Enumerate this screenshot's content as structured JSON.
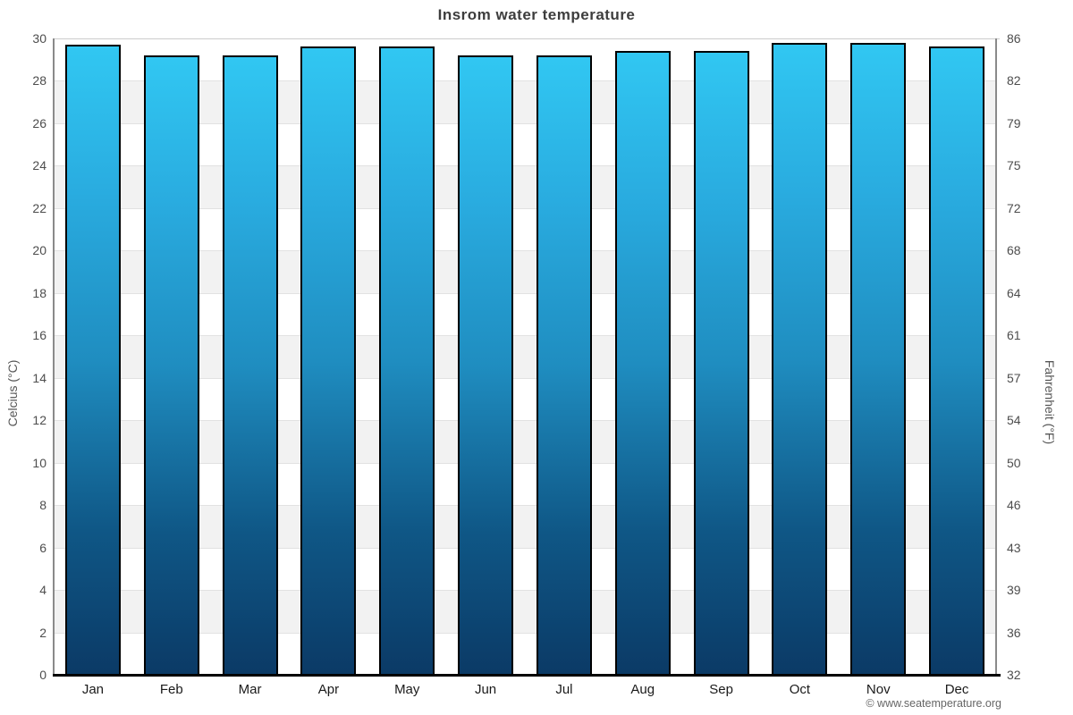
{
  "title": "Insrom water temperature",
  "footer": {
    "copyright": "© www.seatemperature.org"
  },
  "chart_data": {
    "type": "bar",
    "title": "Insrom water temperature",
    "categories": [
      "Jan",
      "Feb",
      "Mar",
      "Apr",
      "May",
      "Jun",
      "Jul",
      "Aug",
      "Sep",
      "Oct",
      "Nov",
      "Dec"
    ],
    "series": [
      {
        "name": "Water temperature",
        "unit": "°C",
        "values": [
          29.7,
          29.2,
          29.2,
          29.6,
          29.6,
          29.2,
          29.2,
          29.4,
          29.4,
          29.8,
          29.8,
          29.6
        ]
      }
    ],
    "xlabel": "",
    "ylabel_left": "Celcius (°C)",
    "ylabel_right": "Fahrenheit (°F)",
    "ylim_left": [
      0,
      30
    ],
    "ylim_right": [
      32,
      86
    ],
    "celsius_ticks": [
      0,
      2,
      4,
      6,
      8,
      10,
      12,
      14,
      16,
      18,
      20,
      22,
      24,
      26,
      28,
      30
    ],
    "fahrenheit_tick_labels": [
      "32",
      "36",
      "39",
      "43",
      "46",
      "50",
      "54",
      "57",
      "61",
      "64",
      "68",
      "72",
      "75",
      "79",
      "82",
      "86"
    ],
    "grid": "horizontal alternating bands every 2°C",
    "legend": "none",
    "colors": {
      "bar_gradient_top": "#31c7f2",
      "bar_gradient_mid": "#1f8dc0",
      "bar_gradient_bottom": "#0b3a66",
      "bar_border": "#000000",
      "band_gray": "#f2f2f2",
      "band_white": "#ffffff",
      "title_text": "#3d3d3d",
      "tick_text": "#4d4d4d"
    }
  }
}
